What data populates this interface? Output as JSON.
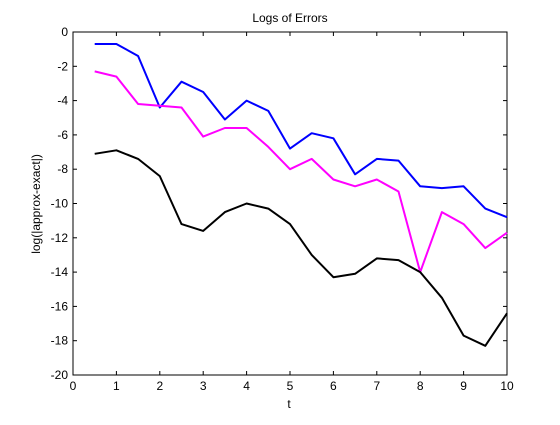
{
  "chart_data": {
    "type": "line",
    "title": "Logs of Errors",
    "xlabel": "t",
    "ylabel": "log(|approx-exact|)",
    "xlim": [
      0,
      10
    ],
    "ylim": [
      -20,
      0
    ],
    "xticks": [
      0,
      1,
      2,
      3,
      4,
      5,
      6,
      7,
      8,
      9,
      10
    ],
    "yticks": [
      0,
      -2,
      -4,
      -6,
      -8,
      -10,
      -12,
      -14,
      -16,
      -18,
      -20
    ],
    "grid": false,
    "legend": "none",
    "x": [
      0.5,
      1.0,
      1.5,
      2.0,
      2.5,
      3.0,
      3.5,
      4.0,
      4.5,
      5.0,
      5.5,
      6.0,
      6.5,
      7.0,
      7.5,
      8.0,
      8.5,
      9.0,
      9.5,
      10.0
    ],
    "series": [
      {
        "color": "#0000ff",
        "values": [
          -0.7,
          -0.7,
          -1.4,
          -4.4,
          -2.9,
          -3.5,
          -5.1,
          -4.0,
          -4.6,
          -6.8,
          -5.9,
          -6.2,
          -8.3,
          -7.4,
          -7.5,
          -9.0,
          -9.1,
          -9.0,
          -10.3,
          -10.8
        ]
      },
      {
        "color": "#ff00ff",
        "values": [
          -2.3,
          -2.6,
          -4.2,
          -4.3,
          -4.4,
          -6.1,
          -5.6,
          -5.6,
          -6.7,
          -8.0,
          -7.4,
          -8.6,
          -9.0,
          -8.6,
          -9.3,
          -14.0,
          -10.5,
          -11.2,
          -12.6,
          -11.7
        ]
      },
      {
        "color": "#000000",
        "values": [
          -7.1,
          -6.9,
          -7.4,
          -8.4,
          -11.2,
          -11.6,
          -10.5,
          -10.0,
          -10.3,
          -11.2,
          -13.0,
          -14.3,
          -14.1,
          -13.2,
          -13.3,
          -14.0,
          -15.5,
          -17.7,
          -18.3,
          -16.4
        ]
      }
    ]
  }
}
